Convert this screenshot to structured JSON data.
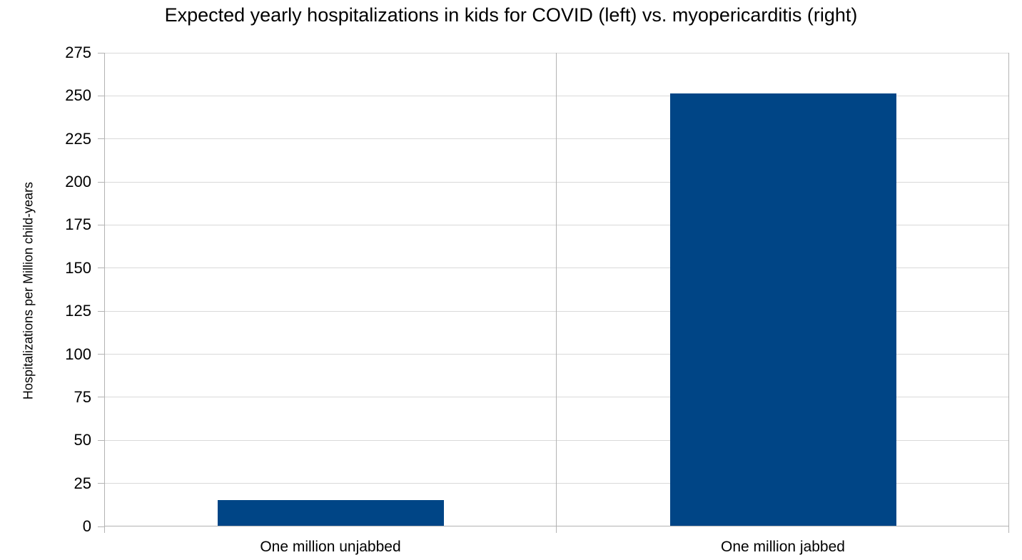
{
  "chart_data": {
    "type": "bar",
    "title": "Expected yearly hospitalizations in kids for COVID (left) vs. myopericarditis (right)",
    "categories": [
      "One million unjabbed",
      "One million jabbed"
    ],
    "values": [
      15,
      251
    ],
    "xlabel": "",
    "ylabel": "Hospitalizations per Million child-years",
    "ylim": [
      0,
      275
    ],
    "yticks": [
      0,
      25,
      50,
      75,
      100,
      125,
      150,
      175,
      200,
      225,
      250,
      275
    ],
    "grid": "horizontal",
    "legend": "none",
    "bar_color": "#004586",
    "gridline_color": "#d9d9d9",
    "axis_color": "#b3b3b3",
    "text_color": "#000000",
    "background_color": "#ffffff"
  }
}
